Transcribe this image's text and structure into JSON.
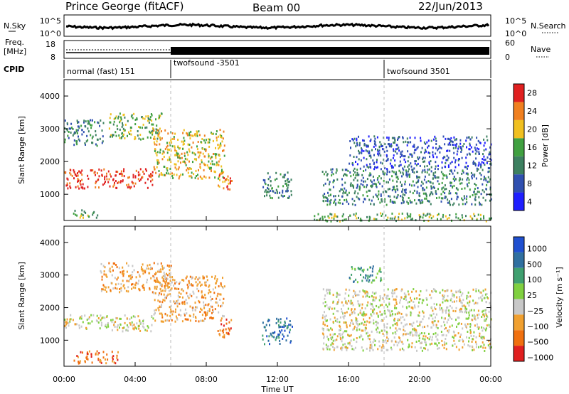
{
  "header": {
    "title": "Prince George (fitACF)",
    "beam": "Beam 00",
    "date": "22/Jun/2013"
  },
  "noise_panel": {
    "left_label": "N.Sky",
    "right_label": "N.Search",
    "left_ticks": [
      "10^5",
      "10^0"
    ],
    "right_ticks": [
      "10^5",
      "10^0"
    ]
  },
  "freq_panel": {
    "left_label_line1": "Freq.",
    "left_label_line2": "[MHz]",
    "left_ticks": [
      "18",
      "8"
    ],
    "right_label": "Nave",
    "right_ticks": [
      "60",
      "0"
    ]
  },
  "cpid": {
    "label": "CPID",
    "segments": [
      {
        "label": "normal (fast) 151",
        "start_hour": 0
      },
      {
        "label": "twofsound -3501",
        "start_hour": 6
      },
      {
        "label": "twofsound 3501",
        "start_hour": 18
      }
    ]
  },
  "axes": {
    "ylabel": "Slant Range [km]",
    "xlabel": "Time UT",
    "y_ticks": [
      "1000",
      "2000",
      "3000",
      "4000"
    ],
    "x_ticks": [
      "00:00",
      "04:00",
      "08:00",
      "12:00",
      "16:00",
      "20:00",
      "00:00"
    ]
  },
  "power_colorbar": {
    "label": "Power [dB]",
    "ticks": [
      "4",
      "8",
      "12",
      "16",
      "20",
      "24",
      "28"
    ],
    "colors": [
      "#1f1fff",
      "#3050b0",
      "#3d8060",
      "#40a040",
      "#f0c020",
      "#f08020",
      "#e02020"
    ]
  },
  "velocity_colorbar": {
    "label": "Velocity [m s⁻¹]",
    "ticks": [
      "1000",
      "500",
      "100",
      "25",
      "−25",
      "−100",
      "−500",
      "−1000"
    ],
    "colors": [
      "#2050d0",
      "#3070a0",
      "#40a070",
      "#80d040",
      "#c8c8c8",
      "#f0a030",
      "#f07010",
      "#e02020"
    ]
  },
  "chart_data": [
    {
      "type": "heatmap",
      "title": "Power",
      "xlabel": "Time UT",
      "ylabel": "Slant Range [km]",
      "xlim": [
        0,
        24
      ],
      "ylim": [
        200,
        4500
      ],
      "scatter_bands": [
        {
          "t0": 0,
          "t1": 2.2,
          "r0": 2500,
          "r1": 3300,
          "value": 8
        },
        {
          "t0": 2.5,
          "t1": 5.5,
          "r0": 2700,
          "r1": 3500,
          "value": 14
        },
        {
          "t0": 0,
          "t1": 5,
          "r0": 1200,
          "r1": 1800,
          "value": 24
        },
        {
          "t0": 5,
          "t1": 9,
          "r0": 1500,
          "r1": 3000,
          "value": 16
        },
        {
          "t0": 0.5,
          "t1": 2,
          "r0": 300,
          "r1": 550,
          "value": 12
        },
        {
          "t0": 8.6,
          "t1": 9.4,
          "r0": 1100,
          "r1": 1700,
          "value": 20
        },
        {
          "t0": 11.1,
          "t1": 12.8,
          "r0": 900,
          "r1": 1700,
          "value": 8
        },
        {
          "t0": 14.5,
          "t1": 24,
          "r0": 700,
          "r1": 1800,
          "value": 10
        },
        {
          "t0": 16,
          "t1": 24,
          "r0": 1800,
          "r1": 2800,
          "value": 6
        },
        {
          "t0": 14,
          "t1": 24,
          "r0": 200,
          "r1": 450,
          "value": 12
        }
      ]
    },
    {
      "type": "heatmap",
      "title": "Velocity",
      "xlabel": "Time UT",
      "ylabel": "Slant Range [km]",
      "xlim": [
        0,
        24
      ],
      "ylim": [
        200,
        4500
      ],
      "scatter_bands": [
        {
          "t0": 0,
          "t1": 5,
          "r0": 1300,
          "r1": 1800,
          "value": 0
        },
        {
          "t0": 2,
          "t1": 6,
          "r0": 2500,
          "r1": 3400,
          "value": -100
        },
        {
          "t0": 5,
          "t1": 9,
          "r0": 1600,
          "r1": 3000,
          "value": -50
        },
        {
          "t0": 0.5,
          "t1": 3,
          "r0": 300,
          "r1": 700,
          "value": -500
        },
        {
          "t0": 8.6,
          "t1": 9.4,
          "r0": 1100,
          "r1": 1700,
          "value": -300
        },
        {
          "t0": 11.1,
          "t1": 12.8,
          "r0": 900,
          "r1": 1700,
          "value": 600
        },
        {
          "t0": 14.5,
          "t1": 24,
          "r0": 700,
          "r1": 2600,
          "value": 0
        },
        {
          "t0": 16,
          "t1": 18,
          "r0": 2800,
          "r1": 3300,
          "value": 150
        }
      ]
    }
  ]
}
